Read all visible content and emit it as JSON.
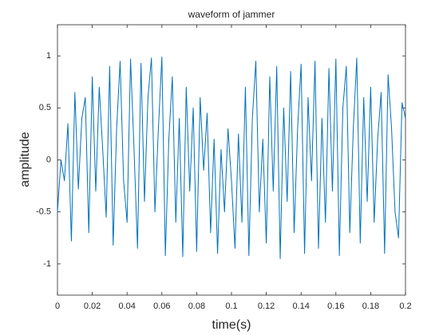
{
  "chart_data": {
    "type": "line",
    "title": "waveform of jammer",
    "x_label": "time(s)",
    "y_label": "amplitude",
    "x": [
      0,
      0.002,
      0.004,
      0.006,
      0.008,
      0.01,
      0.012,
      0.014,
      0.016,
      0.018,
      0.02,
      0.022,
      0.024,
      0.026,
      0.028,
      0.03,
      0.032,
      0.034,
      0.036,
      0.038,
      0.04,
      0.042,
      0.044,
      0.046,
      0.048,
      0.05,
      0.052,
      0.054,
      0.056,
      0.058,
      0.06,
      0.062,
      0.064,
      0.066,
      0.068,
      0.07,
      0.072,
      0.074,
      0.076,
      0.078,
      0.08,
      0.082,
      0.084,
      0.086,
      0.088,
      0.09,
      0.092,
      0.094,
      0.096,
      0.098,
      0.1,
      0.102,
      0.104,
      0.106,
      0.108,
      0.11,
      0.112,
      0.114,
      0.116,
      0.118,
      0.12,
      0.122,
      0.124,
      0.126,
      0.128,
      0.13,
      0.132,
      0.134,
      0.136,
      0.138,
      0.14,
      0.142,
      0.144,
      0.146,
      0.148,
      0.15,
      0.152,
      0.154,
      0.156,
      0.158,
      0.16,
      0.162,
      0.164,
      0.166,
      0.168,
      0.17,
      0.172,
      0.174,
      0.176,
      0.178,
      0.18,
      0.182,
      0.184,
      0.186,
      0.188,
      0.19,
      0.192,
      0.194,
      0.196,
      0.198,
      0.2
    ],
    "series": [
      {
        "name": "jammer",
        "color": "#0072bd",
        "values": [
          -0.5,
          0.0,
          -0.2,
          0.35,
          -0.78,
          0.65,
          -0.28,
          0.4,
          0.6,
          -0.7,
          0.8,
          -0.3,
          0.7,
          0.1,
          -0.55,
          0.9,
          -0.82,
          0.3,
          0.95,
          -0.2,
          -0.6,
          0.97,
          0.1,
          -0.85,
          0.93,
          -0.4,
          0.6,
          0.98,
          -0.5,
          0.3,
          0.99,
          -0.92,
          0.2,
          0.8,
          -0.6,
          0.4,
          -0.93,
          0.7,
          -0.3,
          0.5,
          -0.88,
          0.6,
          -0.1,
          0.45,
          -0.7,
          0.2,
          -0.9,
          0.1,
          -0.5,
          0.3,
          -0.2,
          -0.85,
          0.25,
          -0.6,
          0.7,
          -0.92,
          0.4,
          0.95,
          -0.5,
          0.2,
          -0.8,
          0.8,
          -0.3,
          0.9,
          -0.95,
          0.5,
          -0.4,
          0.85,
          -0.7,
          0.3,
          0.92,
          -0.9,
          0.6,
          -0.2,
          0.95,
          -0.85,
          0.4,
          -0.6,
          0.88,
          -0.3,
          0.97,
          -0.92,
          0.5,
          0.9,
          -0.7,
          0.3,
          0.98,
          -0.8,
          0.6,
          -0.4,
          0.7,
          -0.6,
          0.2,
          0.65,
          -0.9,
          0.82,
          0.3,
          -0.5,
          -0.75,
          0.55,
          0.4
        ]
      }
    ],
    "xlim": [
      0,
      0.2
    ],
    "ylim": [
      -1.3,
      1.3
    ],
    "xticks": [
      0,
      0.02,
      0.04,
      0.06,
      0.08,
      0.1,
      0.12,
      0.14,
      0.16,
      0.18,
      0.2
    ],
    "yticks": [
      -1,
      -0.5,
      0,
      0.5,
      1
    ]
  }
}
